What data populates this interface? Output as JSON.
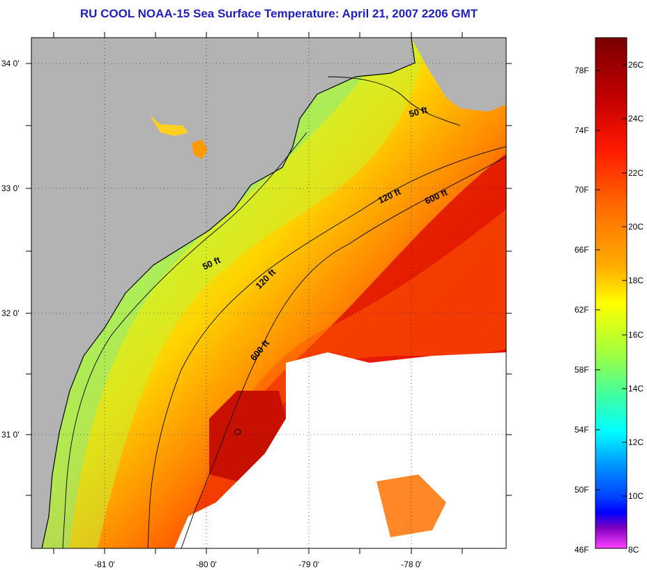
{
  "title": "RU COOL  NOAA-15  Sea Surface Temperature:  April 21, 2007 2206 GMT",
  "lat_labels": [
    "34 0'",
    "33 0'",
    "32 0'",
    "31 0'"
  ],
  "lon_labels": [
    "-81 0'",
    "-80 0'",
    "-79 0'",
    "-78 0'"
  ],
  "contour_labels": [
    "50 ft",
    "120 ft",
    "600 ft",
    "50 ft",
    "120 ft",
    "600 ft"
  ],
  "colorbar": {
    "fahrenheit": [
      "78F",
      "74F",
      "70F",
      "66F",
      "62F",
      "58F",
      "54F",
      "50F",
      "46F"
    ],
    "celsius": [
      "26C",
      "24C",
      "22C",
      "20C",
      "18C",
      "16C",
      "14C",
      "12C",
      "10C",
      "8C"
    ],
    "colors": [
      "#7a0000",
      "#c40000",
      "#ff1a00",
      "#ff6a00",
      "#ffae00",
      "#ffff00",
      "#a0ff40",
      "#40ffa0",
      "#00ffff",
      "#00a0ff",
      "#0040ff",
      "#0000ff",
      "#8000c0",
      "#ff40ff"
    ]
  },
  "colors": {
    "title": "#1f1fbf",
    "land": "#b3b3b3",
    "cloud": "#ffffff"
  }
}
